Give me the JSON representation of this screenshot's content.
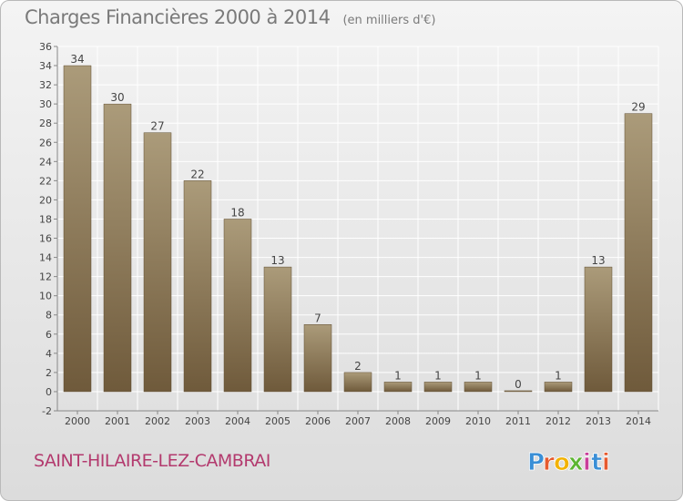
{
  "title": {
    "main": "Charges Financières 2000 à 2014",
    "unit": "(en milliers d'€)"
  },
  "commune": "SAINT-HILAIRE-LEZ-CAMBRAI",
  "logo": {
    "text": "Proxiti",
    "colors": [
      "#3a8fd6",
      "#e65a2e",
      "#f2b200",
      "#5cb531",
      "#c93d9a",
      "#3a8fd6",
      "#e65a2e"
    ]
  },
  "colors": {
    "bar_light": "#ab9b7a",
    "bar_dark": "#6f5a3b",
    "grid": "#ffffff",
    "text": "#444444"
  },
  "chart_data": {
    "type": "bar",
    "title": "Charges Financières 2000 à 2014",
    "subtitle": "(en milliers d'€)",
    "xlabel": "",
    "ylabel": "",
    "categories": [
      "2000",
      "2001",
      "2002",
      "2003",
      "2004",
      "2005",
      "2006",
      "2007",
      "2008",
      "2009",
      "2010",
      "2011",
      "2012",
      "2013",
      "2014"
    ],
    "values": [
      34,
      30,
      27,
      22,
      18,
      13,
      7,
      2,
      1,
      1,
      1,
      0,
      1,
      13,
      29
    ],
    "ylim": [
      -2,
      36
    ],
    "yticks": [
      -2,
      0,
      2,
      4,
      6,
      8,
      10,
      12,
      14,
      16,
      18,
      20,
      22,
      24,
      26,
      28,
      30,
      32,
      34,
      36
    ],
    "grid": true,
    "legend": "none"
  }
}
